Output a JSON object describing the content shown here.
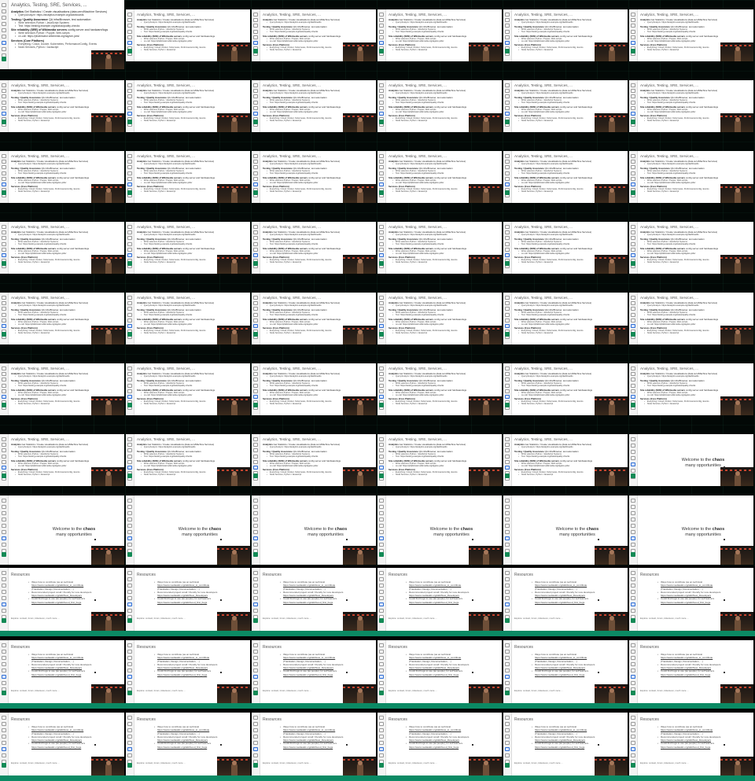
{
  "analytics": {
    "title": "Analytics, Testing, SRE, Services, ...",
    "sections": [
      {
        "heading": "Analytics",
        "desc": "Get Statistics / Create visualisations (data.cern/Machine Services)",
        "bullets": [
          {
            "text": "Query/Analyze: ",
            "link": "https://analytics.example.org/dashboards"
          }
        ]
      },
      {
        "heading": "Testing / Quality Assurance",
        "desc": "QA infra/Browser, test automation",
        "bullets": [
          {
            "text": "Write selenium-Python / JavaScript Systems",
            "link": ""
          },
          {
            "text": "Test: ",
            "link": "https://testing.example.org/status/quality-checks"
          }
        ]
      },
      {
        "heading": "Site reliability (SRE) of Wikimedia servers",
        "desc": "config server and hardware/logs",
        "bullets": [
          {
            "text": "Write selenium-Python / Puppet, Web-scripts",
            "link": ""
          },
          {
            "text": "on-call: ",
            "link": "https://phabricator.wikimedia.org/tag/sre-jobs/"
          }
        ]
      },
      {
        "heading": "Services (Core Platform)",
        "desc": "",
        "bullets": [
          {
            "text": "Everything / Cloud, Docker, Kubernetes, PerformanceConfig, Events",
            "link": ""
          },
          {
            "text": "Node.Services, Python / Javascript",
            "link": ""
          }
        ]
      }
    ]
  },
  "welcome": {
    "line1_a": "Welcome to the ",
    "line1_b": "chaos",
    "line2": "many opportunities"
  },
  "resources": {
    "title": "Resources",
    "bullets": [
      {
        "text": "Ways how to contribute (as an technical",
        "link": "https://www.mediawiki.org/wiki/How_to_contribute",
        "extra": "(Translation, Design, Documentation, ...)"
      },
      {
        "text": "Recommended project small / friendly for new developers",
        "link": "https://www.mediawiki.org/wiki/New_Developers",
        "extra": ""
      },
      {
        "text": "Could find bugs to use (as people), for self learners",
        "link": "https://www.mediawiki.org/wiki/Good_first_bugs",
        "extra": ""
      }
    ],
    "footer": "Explore: contact, forum, ticketsoon, much more ..."
  },
  "colors": {
    "accent_green": "#0b8a64",
    "dark_bg": "#020806",
    "tool_blue": "#2f6fd6"
  }
}
